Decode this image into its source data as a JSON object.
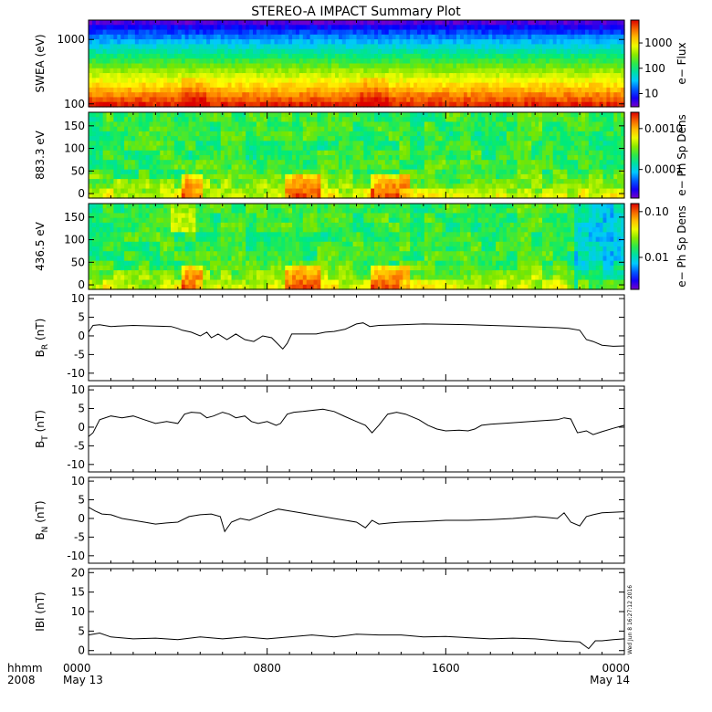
{
  "title": "STEREO-A IMPACT Summary Plot",
  "timestamp": "Wed Jun 8 16:27:12 2016",
  "time_axis": {
    "row1_label": "hhmm",
    "row2_label": "2008",
    "ticks": [
      {
        "t": 0,
        "label": "0000",
        "sub": "May 13"
      },
      {
        "t": 8,
        "label": "0800",
        "sub": ""
      },
      {
        "t": 16,
        "label": "1600",
        "sub": ""
      },
      {
        "t": 24,
        "label": "0000",
        "sub": "May 14"
      }
    ],
    "range_hours": [
      0,
      24
    ]
  },
  "chart_data": [
    {
      "type": "heatmap",
      "ylabel": "SWEA (eV)",
      "yscale": "log",
      "ylim": [
        90,
        2000
      ],
      "yticks": [
        {
          "v": 1000,
          "label": "1000"
        },
        {
          "v": 100,
          "label": "100"
        }
      ],
      "colorbar": {
        "label": "e− Flux",
        "scale": "log",
        "range": [
          3,
          8000
        ],
        "ticks": [
          {
            "v": 1000,
            "label": "1000"
          },
          {
            "v": 100,
            "label": "100"
          },
          {
            "v": 10,
            "label": "10"
          }
        ]
      }
    },
    {
      "type": "heatmap",
      "ylabel": "883.3 eV",
      "ylim": [
        -10,
        180
      ],
      "yticks": [
        {
          "v": 150,
          "label": "150"
        },
        {
          "v": 100,
          "label": "100"
        },
        {
          "v": 50,
          "label": "50"
        },
        {
          "v": 0,
          "label": "0"
        }
      ],
      "colorbar": {
        "label": "e− Ph Sp Dens",
        "scale": "log",
        "range": [
          2e-05,
          0.0025
        ],
        "ticks": [
          {
            "v": 0.001,
            "label": "0.0010"
          },
          {
            "v": 0.0001,
            "label": "0.0001"
          }
        ]
      }
    },
    {
      "type": "heatmap",
      "ylabel": "436.5 eV",
      "ylim": [
        -10,
        180
      ],
      "yticks": [
        {
          "v": 150,
          "label": "150"
        },
        {
          "v": 100,
          "label": "100"
        },
        {
          "v": 50,
          "label": "50"
        },
        {
          "v": 0,
          "label": "0"
        }
      ],
      "colorbar": {
        "label": "e− Ph Sp Dens",
        "scale": "log",
        "range": [
          0.002,
          0.15
        ],
        "ticks": [
          {
            "v": 0.1,
            "label": "0.10"
          },
          {
            "v": 0.01,
            "label": "0.01"
          }
        ]
      }
    },
    {
      "type": "line",
      "ylabel": "B",
      "ysub": "R",
      "yunit": " (nT)",
      "ylim": [
        -12,
        11
      ],
      "yticks": [
        {
          "v": 10,
          "label": "10"
        },
        {
          "v": 5,
          "label": "5"
        },
        {
          "v": 0,
          "label": "0"
        },
        {
          "v": -5,
          "label": "-5"
        },
        {
          "v": -10,
          "label": "-10"
        }
      ],
      "x": [
        0,
        0.2,
        0.5,
        1,
        2,
        3,
        3.7,
        4,
        4.2,
        4.6,
        5,
        5.3,
        5.5,
        5.8,
        6.2,
        6.6,
        7,
        7.4,
        7.8,
        8.2,
        8.7,
        8.9,
        9.1,
        9.4,
        9.8,
        10.2,
        10.6,
        11,
        11.5,
        12,
        12.3,
        12.6,
        13,
        14,
        15,
        16,
        17,
        18,
        19,
        20,
        21,
        21.5,
        22,
        22.3,
        22.6,
        23,
        23.5,
        24
      ],
      "y": [
        1,
        2.8,
        3,
        2.5,
        2.8,
        2.6,
        2.5,
        2,
        1.5,
        1,
        0,
        1,
        -0.5,
        0.5,
        -1,
        0.5,
        -1,
        -1.5,
        0,
        -0.5,
        -3.5,
        -2,
        0.5,
        0.5,
        0.5,
        0.5,
        1,
        1.2,
        1.8,
        3.2,
        3.5,
        2.5,
        2.8,
        3,
        3.2,
        3.1,
        3,
        2.8,
        2.6,
        2.4,
        2.2,
        2,
        1.5,
        -1,
        -1.5,
        -2.5,
        -2.8,
        -2.7
      ]
    },
    {
      "type": "line",
      "ylabel": "B",
      "ysub": "T",
      "yunit": " (nT)",
      "ylim": [
        -12,
        11
      ],
      "yticks": [
        {
          "v": 10,
          "label": "10"
        },
        {
          "v": 5,
          "label": "5"
        },
        {
          "v": 0,
          "label": "0"
        },
        {
          "v": -5,
          "label": "-5"
        },
        {
          "v": -10,
          "label": "-10"
        }
      ],
      "x": [
        0,
        0.2,
        0.5,
        1,
        1.5,
        2,
        2.5,
        3,
        3.5,
        4,
        4.3,
        4.6,
        5,
        5.3,
        5.6,
        6,
        6.3,
        6.6,
        7,
        7.3,
        7.6,
        8,
        8.4,
        8.6,
        8.9,
        9.2,
        9.6,
        10,
        10.5,
        11,
        11.5,
        12,
        12.4,
        12.7,
        13,
        13.4,
        13.8,
        14.2,
        14.8,
        15.2,
        15.6,
        16,
        16.6,
        17,
        17.3,
        17.6,
        18,
        19,
        20,
        21,
        21.3,
        21.6,
        21.9,
        22.3,
        22.6,
        23,
        23.5,
        24
      ],
      "y": [
        -2.5,
        -1.5,
        2,
        3,
        2.5,
        3,
        2,
        1,
        1.5,
        1,
        3.5,
        4,
        3.8,
        2.5,
        3,
        4,
        3.5,
        2.5,
        3,
        1.5,
        1,
        1.5,
        0.5,
        1,
        3.5,
        4,
        4.2,
        4.5,
        4.8,
        4.2,
        2.8,
        1.5,
        0.5,
        -1.5,
        0.5,
        3.5,
        4,
        3.5,
        2,
        0.5,
        -0.5,
        -1,
        -0.8,
        -1,
        -0.5,
        0.5,
        0.8,
        1.2,
        1.6,
        2,
        2.5,
        2.2,
        -1.5,
        -1,
        -2,
        -1.2,
        -0.3,
        0.5
      ]
    },
    {
      "type": "line",
      "ylabel": "B",
      "ysub": "N",
      "yunit": " (nT)",
      "ylim": [
        -12,
        11
      ],
      "yticks": [
        {
          "v": 10,
          "label": "10"
        },
        {
          "v": 5,
          "label": "5"
        },
        {
          "v": 0,
          "label": "0"
        },
        {
          "v": -5,
          "label": "-5"
        },
        {
          "v": -10,
          "label": "-10"
        }
      ],
      "x": [
        0,
        0.3,
        0.6,
        1,
        1.5,
        2,
        2.5,
        3,
        3.5,
        4,
        4.5,
        5,
        5.5,
        5.9,
        6.1,
        6.4,
        6.8,
        7.2,
        7.6,
        8,
        8.5,
        9,
        9.5,
        10,
        10.5,
        11,
        11.5,
        12,
        12.4,
        12.7,
        13,
        13.5,
        14,
        15,
        16,
        17,
        18,
        19,
        20,
        20.5,
        21,
        21.3,
        21.6,
        22,
        22.3,
        22.6,
        23,
        24
      ],
      "y": [
        3,
        2,
        1.2,
        1,
        0,
        -0.5,
        -1,
        -1.5,
        -1.2,
        -1,
        0.5,
        1,
        1.2,
        0.5,
        -3.5,
        -1,
        0,
        -0.5,
        0.5,
        1.5,
        2.5,
        2,
        1.5,
        1,
        0.5,
        0,
        -0.5,
        -1,
        -2.5,
        -0.5,
        -1.5,
        -1.2,
        -1,
        -0.8,
        -0.5,
        -0.5,
        -0.3,
        0,
        0.5,
        0.3,
        0,
        1.5,
        -1,
        -2,
        0.5,
        1,
        1.5,
        1.8
      ]
    },
    {
      "type": "line",
      "ylabel": "IBI",
      "ysub": "",
      "yunit": " (nT)",
      "ylim": [
        -1,
        21
      ],
      "yticks": [
        {
          "v": 20,
          "label": "20"
        },
        {
          "v": 15,
          "label": "15"
        },
        {
          "v": 10,
          "label": "10"
        },
        {
          "v": 5,
          "label": "5"
        },
        {
          "v": 0,
          "label": "0"
        }
      ],
      "x": [
        0,
        0.5,
        1,
        2,
        3,
        4,
        5,
        6,
        7,
        8,
        9,
        10,
        11,
        12,
        13,
        14,
        15,
        16,
        17,
        18,
        19,
        20,
        21,
        22,
        22.4,
        22.7,
        23,
        23.5,
        24
      ],
      "y": [
        4,
        4.5,
        3.5,
        3,
        3.2,
        2.8,
        3.5,
        3,
        3.5,
        3,
        3.5,
        4,
        3.5,
        4.2,
        4,
        4,
        3.5,
        3.6,
        3.3,
        3,
        3.2,
        3,
        2.5,
        2.2,
        0.5,
        2.5,
        2.5,
        2.8,
        3
      ]
    }
  ]
}
